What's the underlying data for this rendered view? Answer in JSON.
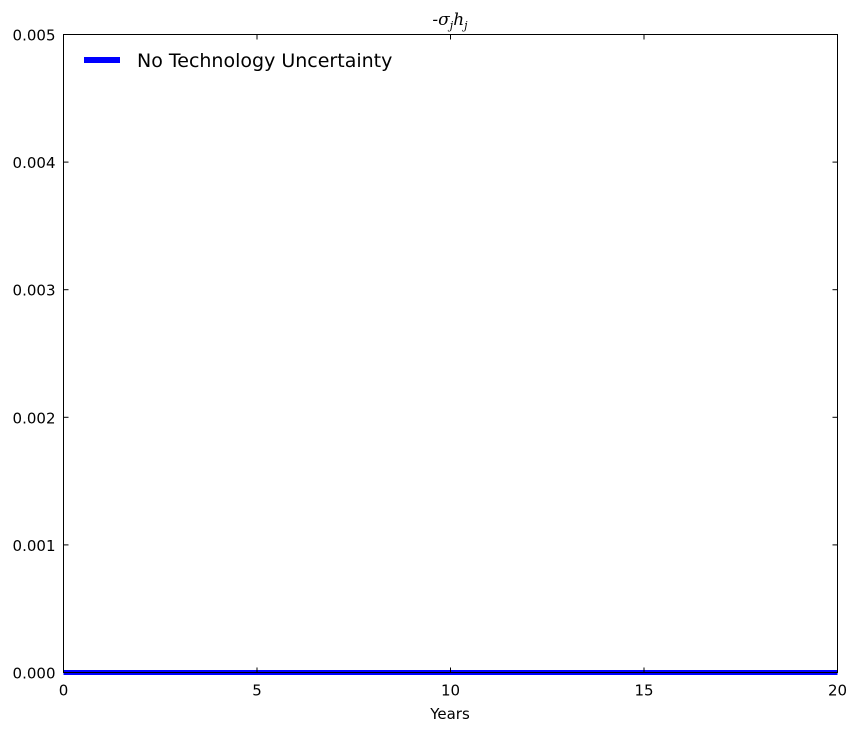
{
  "chart_data": {
    "type": "line",
    "title": "-σjhj",
    "xlabel": "Years",
    "ylabel": "",
    "xlim": [
      0,
      20
    ],
    "ylim": [
      0,
      0.005
    ],
    "xticks": [
      0,
      5,
      10,
      15,
      20
    ],
    "xtick_labels": [
      "0",
      "5",
      "10",
      "15",
      "20"
    ],
    "yticks": [
      0,
      0.001,
      0.002,
      0.003,
      0.004,
      0.005
    ],
    "ytick_labels": [
      "0.000",
      "0.001",
      "0.002",
      "0.003",
      "0.004",
      "0.005"
    ],
    "grid": false,
    "legend_position": "top-left",
    "series": [
      {
        "name": "No Technology Uncertainty",
        "color": "#0000ff",
        "x": [
          0,
          20
        ],
        "y": [
          0,
          0
        ]
      }
    ]
  }
}
